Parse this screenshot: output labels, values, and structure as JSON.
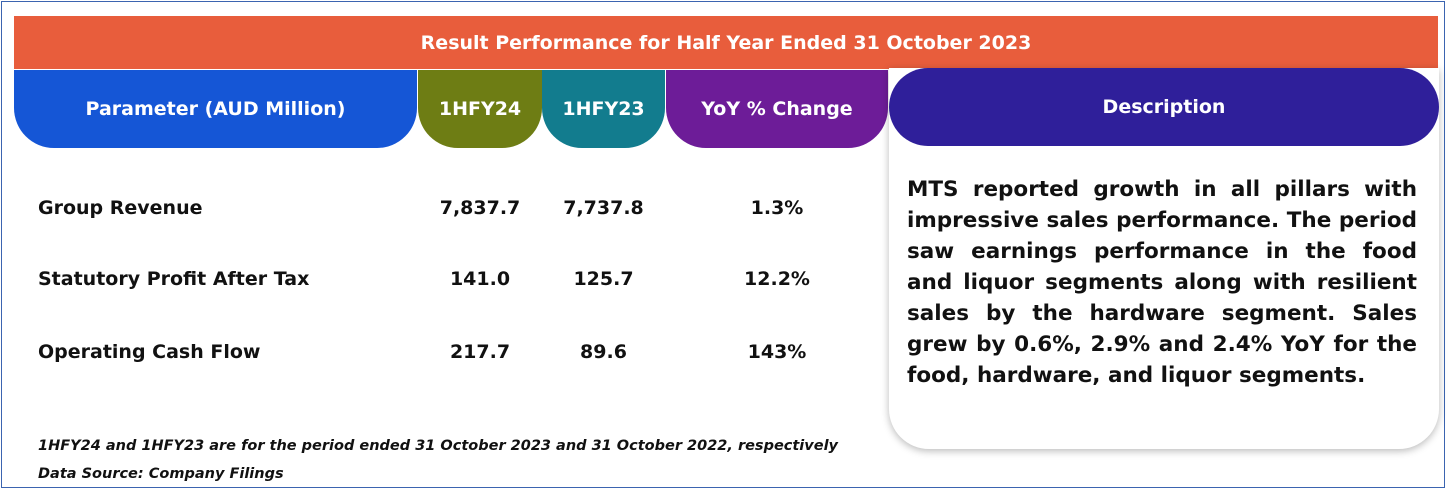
{
  "banner": {
    "title": "Result Performance for Half Year Ended 31 October 2023"
  },
  "colors": {
    "banner": "#e85d3c",
    "parameter_header": "#1556d6",
    "col_1hfy24": "#6e7d14",
    "col_1hfy23": "#127c8e",
    "col_yoy": "#6d1c98",
    "description_header": "#2f1f9a"
  },
  "chart_data": {
    "type": "table",
    "title": "Result Performance for Half Year Ended 31 October 2023",
    "columns": [
      "Parameter (AUD Million)",
      "1HFY24",
      "1HFY23",
      "YoY % Change"
    ],
    "rows": [
      {
        "parameter": "Group Revenue",
        "hfy24": "7,837.7",
        "hfy23": "7,737.8",
        "yoy": "1.3%"
      },
      {
        "parameter": "Statutory Profit After Tax",
        "hfy24": "141.0",
        "hfy23": "125.7",
        "yoy": "12.2%"
      },
      {
        "parameter": "Operating Cash Flow",
        "hfy24": "217.7",
        "hfy23": "89.6",
        "yoy": "143%"
      }
    ]
  },
  "description": {
    "header": "Description",
    "text": "MTS reported growth in all pillars with impressive sales performance. The period saw earnings performance in the food and liquor segments along with resilient sales by the hardware segment. Sales grew by 0.6%, 2.9% and 2.4% YoY for the food, hardware, and liquor segments."
  },
  "footnotes": {
    "period_note": "1HFY24 and 1HFY23 are for the period ended 31 October 2023 and 31 October 2022, respectively",
    "source": "Data Source: Company Filings"
  }
}
